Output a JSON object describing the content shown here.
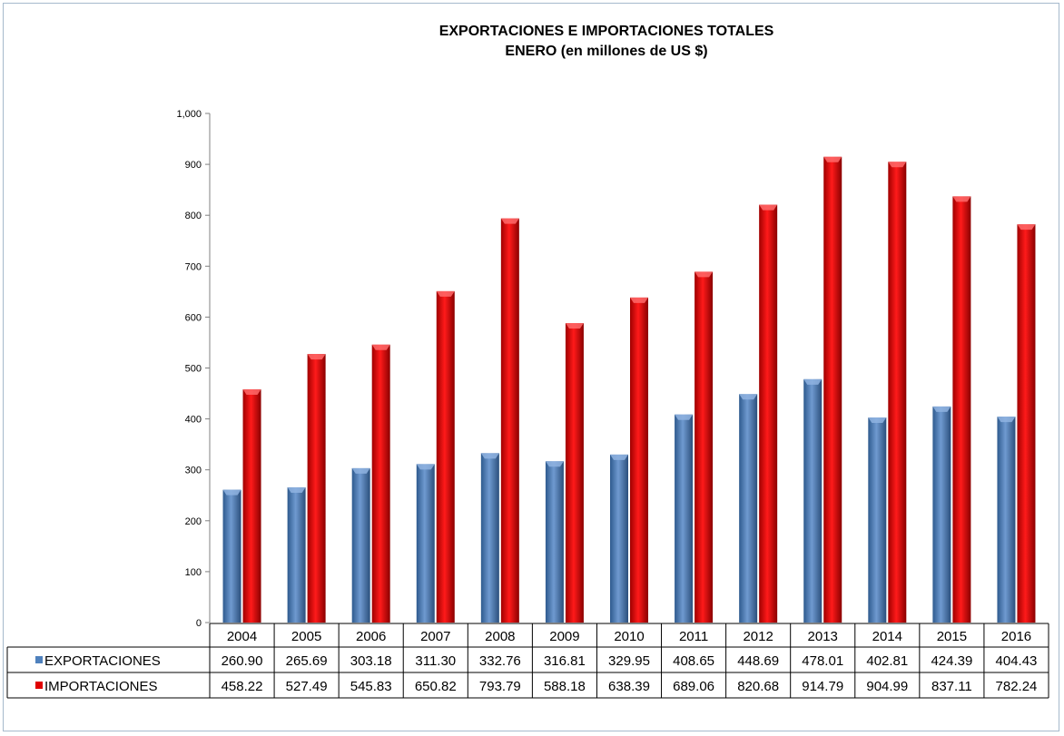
{
  "chart_data": {
    "type": "bar",
    "title_line1": "EXPORTACIONES E IMPORTACIONES TOTALES",
    "title_line2": "ENERO (en millones de US $)",
    "categories": [
      "2004",
      "2005",
      "2006",
      "2007",
      "2008",
      "2009",
      "2010",
      "2011",
      "2012",
      "2013",
      "2014",
      "2015",
      "2016"
    ],
    "series": [
      {
        "name": "EXPORTACIONES",
        "color": "#4f81bd",
        "values": [
          260.9,
          265.69,
          303.18,
          311.3,
          332.76,
          316.81,
          329.95,
          408.65,
          448.69,
          478.01,
          402.81,
          424.39,
          404.43
        ],
        "labels": [
          "260.90",
          "265.69",
          "303.18",
          "311.30",
          "332.76",
          "316.81",
          "329.95",
          "408.65",
          "448.69",
          "478.01",
          "402.81",
          "424.39",
          "404.43"
        ]
      },
      {
        "name": "IMPORTACIONES",
        "color": "#e00000",
        "values": [
          458.22,
          527.49,
          545.83,
          650.82,
          793.79,
          588.18,
          638.39,
          689.06,
          820.68,
          914.79,
          904.99,
          837.11,
          782.24
        ],
        "labels": [
          "458.22",
          "527.49",
          "545.83",
          "650.82",
          "793.79",
          "588.18",
          "638.39",
          "689.06",
          "820.68",
          "914.79",
          "904.99",
          "837.11",
          "782.24"
        ]
      }
    ],
    "ylim": [
      0,
      1000
    ],
    "yticks": [
      "0",
      "100",
      "200",
      "300",
      "400",
      "500",
      "600",
      "700",
      "800",
      "900",
      "1,000"
    ],
    "grid": false,
    "legend": "data-table"
  }
}
